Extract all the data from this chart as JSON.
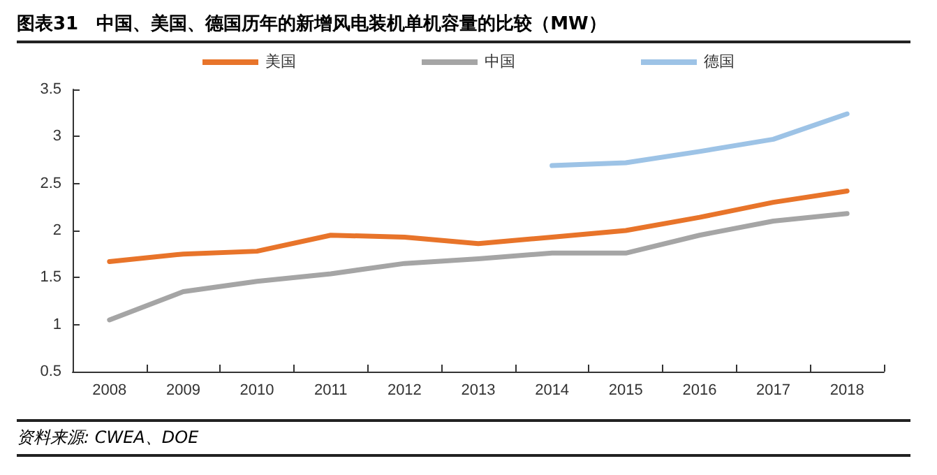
{
  "chart_data": {
    "type": "line",
    "title": "图表31　中国、美国、德国历年的新增风电装机单机容量的比较（MW）",
    "categories": [
      "2008",
      "2009",
      "2010",
      "2011",
      "2012",
      "2013",
      "2014",
      "2015",
      "2016",
      "2017",
      "2018"
    ],
    "series": [
      {
        "name": "美国",
        "color": "#e8742a",
        "values": [
          1.67,
          1.75,
          1.78,
          1.95,
          1.93,
          1.86,
          1.93,
          2.0,
          2.14,
          2.3,
          2.42
        ]
      },
      {
        "name": "中国",
        "color": "#a5a5a5",
        "values": [
          1.05,
          1.35,
          1.46,
          1.54,
          1.65,
          1.7,
          1.76,
          1.76,
          1.95,
          2.1,
          2.18
        ]
      },
      {
        "name": "德国",
        "color": "#9dc3e6",
        "values": [
          null,
          null,
          null,
          null,
          null,
          null,
          2.69,
          2.72,
          2.84,
          2.97,
          3.24
        ]
      }
    ],
    "ylim": [
      0.5,
      3.5
    ],
    "yticks": [
      0.5,
      1,
      1.5,
      2,
      2.5,
      3,
      3.5
    ],
    "grid": false,
    "legend": "top",
    "marker": "none",
    "line_style": "solid",
    "annotations": [
      "资料来源: CWEA、DOE"
    ]
  }
}
